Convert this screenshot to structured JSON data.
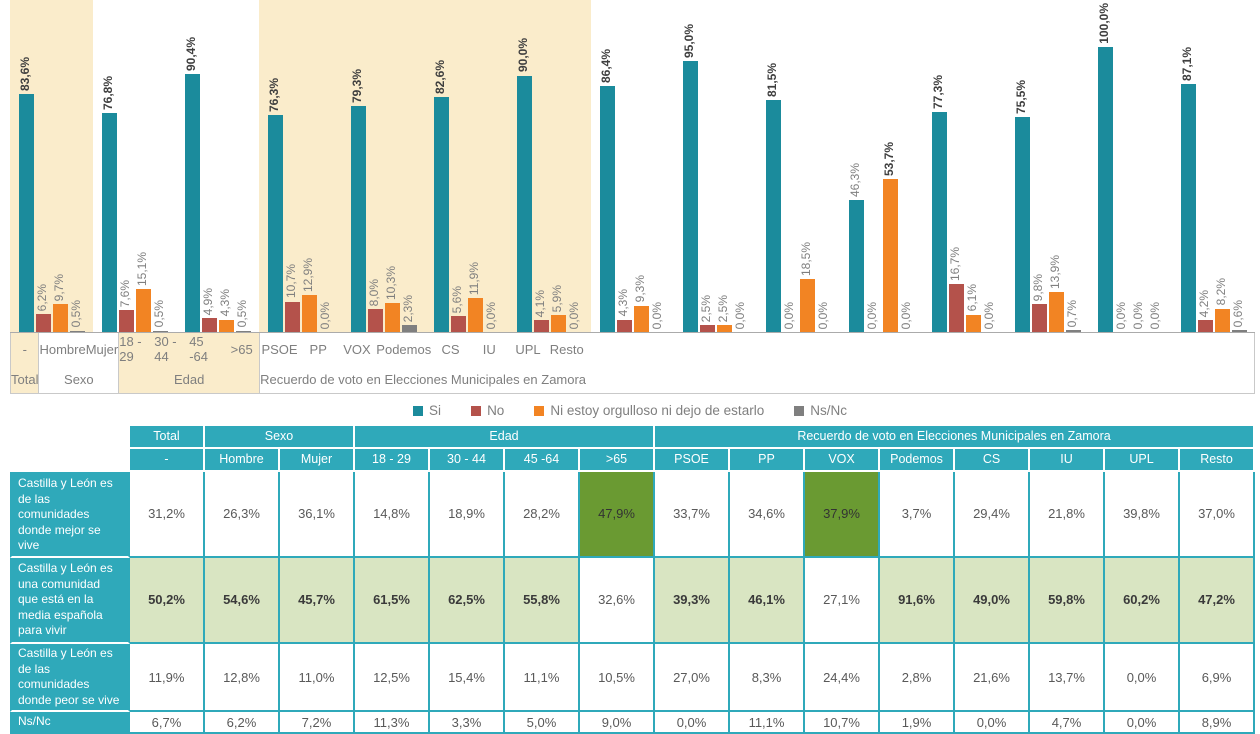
{
  "colors": {
    "series": [
      "#1B8B9C",
      "#B4524B",
      "#F28423",
      "#7F7F7F"
    ],
    "band_highlight": "#FAECCB",
    "table_teal": "#2FA9BA",
    "dark_green": "#6A9A32",
    "light_green": "#D9E5C2",
    "axis_line": "#ABABAB",
    "label_gray": "#7F7F7F",
    "label_dark": "#3F3F3F"
  },
  "legend": [
    {
      "label": "Si",
      "color": "#1B8B9C"
    },
    {
      "label": "No",
      "color": "#B4524B"
    },
    {
      "label": "Ni estoy orgulloso ni dejo de estarlo",
      "color": "#F28423"
    },
    {
      "label": "Ns/Nc",
      "color": "#7F7F7F"
    }
  ],
  "chart_data": {
    "type": "bar",
    "title": "",
    "ylabel": "",
    "xlabel": "",
    "ylim": [
      0,
      100
    ],
    "grid": false,
    "legend_position": "bottom",
    "value_labels_rotated_90": true,
    "series_names": [
      "Si",
      "No",
      "Ni estoy orgulloso ni dejo de estarlo",
      "Ns/Nc"
    ],
    "groups": [
      {
        "label": "Total",
        "highlight": true,
        "categories": [
          {
            "label": "-",
            "values": [
              83.6,
              6.2,
              9.7,
              0.5
            ],
            "labels": [
              "83,6%",
              "6,2%",
              "9,7%",
              "0,5%"
            ]
          }
        ]
      },
      {
        "label": "Sexo",
        "highlight": false,
        "categories": [
          {
            "label": "Hombre",
            "values": [
              76.8,
              7.6,
              15.1,
              0.5
            ],
            "labels": [
              "76,8%",
              "7,6%",
              "15,1%",
              "0,5%"
            ]
          },
          {
            "label": "Mujer",
            "values": [
              90.4,
              4.9,
              4.3,
              0.5
            ],
            "labels": [
              "90,4%",
              "4,9%",
              "4,3%",
              "0,5%"
            ]
          }
        ]
      },
      {
        "label": "Edad",
        "highlight": true,
        "categories": [
          {
            "label": "18 - 29",
            "values": [
              76.3,
              10.7,
              12.9,
              0.0
            ],
            "labels": [
              "76,3%",
              "10,7%",
              "12,9%",
              "0,0%"
            ]
          },
          {
            "label": "30 - 44",
            "values": [
              79.3,
              8.0,
              10.3,
              2.3
            ],
            "labels": [
              "79,3%",
              "8,0%",
              "10,3%",
              "2,3%"
            ]
          },
          {
            "label": "45 -64",
            "values": [
              82.6,
              5.6,
              11.9,
              0.0
            ],
            "labels": [
              "82,6%",
              "5,6%",
              "11,9%",
              "0,0%"
            ]
          },
          {
            "label": ">65",
            "values": [
              90.0,
              4.1,
              5.9,
              0.0
            ],
            "labels": [
              "90,0%",
              "4,1%",
              "5,9%",
              "0,0%"
            ]
          }
        ]
      },
      {
        "label": "Recuerdo de voto en Elecciones Municipales en Zamora",
        "highlight": false,
        "categories": [
          {
            "label": "PSOE",
            "values": [
              86.4,
              4.3,
              9.3,
              0.0
            ],
            "labels": [
              "86,4%",
              "4,3%",
              "9,3%",
              "0,0%"
            ]
          },
          {
            "label": "PP",
            "values": [
              95.0,
              2.5,
              2.5,
              0.0
            ],
            "labels": [
              "95,0%",
              "2,5%",
              "2,5%",
              "0,0%"
            ]
          },
          {
            "label": "VOX",
            "values": [
              81.5,
              0.0,
              18.5,
              0.0
            ],
            "labels": [
              "81,5%",
              "0,0%",
              "18,5%",
              "0,0%"
            ]
          },
          {
            "label": "Podemos",
            "values": [
              46.3,
              0.0,
              53.7,
              0.0
            ],
            "labels": [
              "46,3%",
              "0,0%",
              "53,7%",
              "0,0%"
            ]
          },
          {
            "label": "CS",
            "values": [
              77.3,
              16.7,
              6.1,
              0.0
            ],
            "labels": [
              "77,3%",
              "16,7%",
              "6,1%",
              "0,0%"
            ]
          },
          {
            "label": "IU",
            "values": [
              75.5,
              9.8,
              13.9,
              0.7
            ],
            "labels": [
              "75,5%",
              "9,8%",
              "13,9%",
              "0,7%"
            ]
          },
          {
            "label": "UPL",
            "values": [
              100.0,
              0.0,
              0.0,
              0.0
            ],
            "labels": [
              "100,0%",
              "0,0%",
              "0,0%",
              "0,0%"
            ]
          },
          {
            "label": "Resto",
            "values": [
              87.1,
              4.2,
              8.2,
              0.6
            ],
            "labels": [
              "87,1%",
              "4,2%",
              "8,2%",
              "0,6%"
            ]
          }
        ]
      }
    ]
  },
  "table": {
    "col_groups": [
      {
        "label": "Total",
        "span": 1
      },
      {
        "label": "Sexo",
        "span": 2
      },
      {
        "label": "Edad",
        "span": 4
      },
      {
        "label": "Recuerdo de voto en Elecciones Municipales en Zamora",
        "span": 8
      }
    ],
    "col_headers": [
      "-",
      "Hombre",
      "Mujer",
      "18 - 29",
      "30 - 44",
      "45 -64",
      ">65",
      "PSOE",
      "PP",
      "VOX",
      "Podemos",
      "CS",
      "IU",
      "UPL",
      "Resto"
    ],
    "rows": [
      {
        "label": "Castilla y León es de las comunidades donde mejor se vive",
        "values": [
          "31,2%",
          "26,3%",
          "36,1%",
          "14,8%",
          "18,9%",
          "28,2%",
          "47,9%",
          "33,7%",
          "34,6%",
          "37,9%",
          "3,7%",
          "29,4%",
          "21,8%",
          "39,8%",
          "37,0%"
        ],
        "cell_styles": [
          "white",
          "white",
          "white",
          "white",
          "white",
          "white",
          "dark-green",
          "white",
          "white",
          "dark-green",
          "white",
          "white",
          "white",
          "white",
          "white"
        ]
      },
      {
        "label": "Castilla y León es una comunidad que está en la media española para vivir",
        "values": [
          "50,2%",
          "54,6%",
          "45,7%",
          "61,5%",
          "62,5%",
          "55,8%",
          "32,6%",
          "39,3%",
          "46,1%",
          "27,1%",
          "91,6%",
          "49,0%",
          "59,8%",
          "60,2%",
          "47,2%"
        ],
        "cell_styles": [
          "light-green",
          "light-green",
          "light-green",
          "light-green",
          "light-green",
          "light-green",
          "white",
          "light-green",
          "light-green",
          "white",
          "light-green",
          "light-green",
          "light-green",
          "light-green",
          "light-green"
        ]
      },
      {
        "label": "Castilla y León es de las comunidades donde peor se vive",
        "values": [
          "11,9%",
          "12,8%",
          "11,0%",
          "12,5%",
          "15,4%",
          "11,1%",
          "10,5%",
          "27,0%",
          "8,3%",
          "24,4%",
          "2,8%",
          "21,6%",
          "13,7%",
          "0,0%",
          "6,9%"
        ],
        "cell_styles": [
          "white",
          "white",
          "white",
          "white",
          "white",
          "white",
          "white",
          "white",
          "white",
          "white",
          "white",
          "white",
          "white",
          "white",
          "white"
        ]
      },
      {
        "label": "Ns/Nc",
        "values": [
          "6,7%",
          "6,2%",
          "7,2%",
          "11,3%",
          "3,3%",
          "5,0%",
          "9,0%",
          "0,0%",
          "11,1%",
          "10,7%",
          "1,9%",
          "0,0%",
          "4,7%",
          "0,0%",
          "8,9%"
        ],
        "cell_styles": [
          "white",
          "white",
          "white",
          "white",
          "white",
          "white",
          "white",
          "white",
          "white",
          "white",
          "white",
          "white",
          "white",
          "white",
          "white"
        ]
      }
    ]
  }
}
